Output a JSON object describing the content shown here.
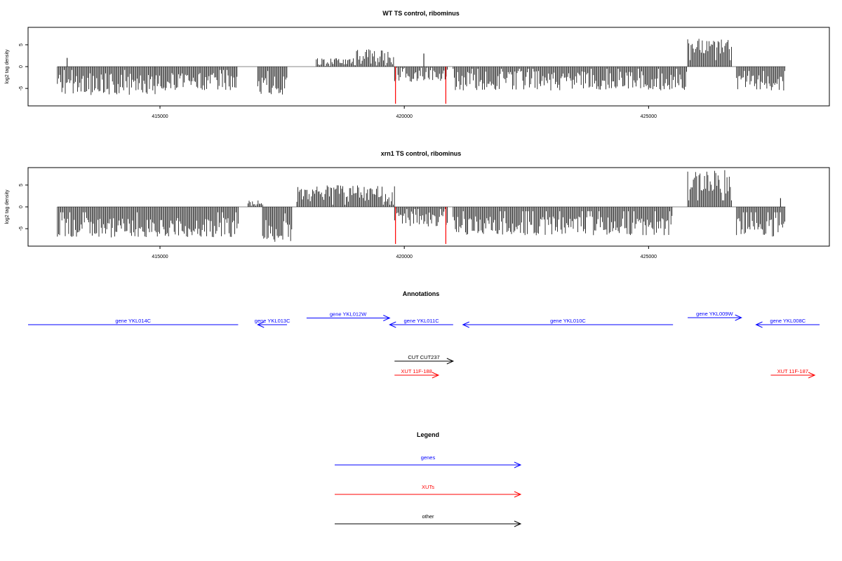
{
  "colors": {
    "signal": "#000000",
    "highlight": "#ff0000",
    "genes": "#0000ff",
    "xuts": "#ff0000",
    "other": "#000000",
    "baseline": "#888888"
  },
  "chart_data": [
    {
      "type": "bar",
      "title": "WT TS control, ribominus",
      "ylabel": "log2 tag density",
      "ylim": [
        -9,
        9
      ],
      "yticks": [
        -5,
        0,
        5
      ],
      "xlim": [
        412300,
        428700
      ],
      "xticks": [
        415000,
        420000,
        425000
      ],
      "grid": false,
      "segments": [
        {
          "start": 412900,
          "end": 414900,
          "sign": -1,
          "low": 1.5,
          "high": 6.5
        },
        {
          "start": 414900,
          "end": 416600,
          "sign": -1,
          "low": 1.5,
          "high": 5.5
        },
        {
          "start": 417000,
          "end": 417600,
          "sign": -1,
          "low": 2,
          "high": 6.5
        },
        {
          "start": 418200,
          "end": 419000,
          "sign": 1,
          "low": 0.3,
          "high": 2
        },
        {
          "start": 419000,
          "end": 419800,
          "sign": 1,
          "low": 0.5,
          "high": 4
        },
        {
          "start": 419800,
          "end": 420900,
          "sign": -1,
          "low": 0.5,
          "high": 3.5
        },
        {
          "start": 421000,
          "end": 425800,
          "sign": -1,
          "low": 1,
          "high": 5.5
        },
        {
          "start": 425800,
          "end": 426700,
          "sign": 1,
          "low": 3,
          "high": 6.5
        },
        {
          "start": 426800,
          "end": 427800,
          "sign": -1,
          "low": 2,
          "high": 5.5
        }
      ],
      "spikes": [
        {
          "x": 413100,
          "y": 2
        },
        {
          "x": 420400,
          "y": 3
        }
      ],
      "highlights": [
        {
          "x": 419820,
          "y": -8.5
        },
        {
          "x": 420850,
          "y": -8.5
        }
      ]
    },
    {
      "type": "bar",
      "title": "xrn1 TS control, ribominus",
      "ylabel": "log2 tag density",
      "ylim": [
        -9,
        9
      ],
      "yticks": [
        -5,
        0,
        5
      ],
      "xlim": [
        412300,
        428700
      ],
      "xticks": [
        415000,
        420000,
        425000
      ],
      "grid": false,
      "segments": [
        {
          "start": 412900,
          "end": 416600,
          "sign": -1,
          "low": 2.5,
          "high": 7
        },
        {
          "start": 416800,
          "end": 417100,
          "sign": 1,
          "low": 0.5,
          "high": 1.5
        },
        {
          "start": 417100,
          "end": 417700,
          "sign": -1,
          "low": 3,
          "high": 8
        },
        {
          "start": 417800,
          "end": 419800,
          "sign": 1,
          "low": 1,
          "high": 5
        },
        {
          "start": 419800,
          "end": 420900,
          "sign": -1,
          "low": 1,
          "high": 4.5
        },
        {
          "start": 421000,
          "end": 425500,
          "sign": -1,
          "low": 2,
          "high": 6.5
        },
        {
          "start": 425800,
          "end": 426700,
          "sign": 1,
          "low": 3,
          "high": 8.5
        },
        {
          "start": 426800,
          "end": 427800,
          "sign": -1,
          "low": 2.5,
          "high": 7
        }
      ],
      "spikes": [
        {
          "x": 427700,
          "y": 2
        }
      ],
      "highlights": [
        {
          "x": 419820,
          "y": -8.5
        },
        {
          "x": 420850,
          "y": -8.5
        }
      ]
    }
  ],
  "annotations": {
    "title": "Annotations",
    "items": [
      {
        "label": "gene YKL014C",
        "start": 412300,
        "end": 416600,
        "strand": "-",
        "row": 2,
        "kind": "genes",
        "arrow": false
      },
      {
        "label": "gene YKL013C",
        "start": 417000,
        "end": 417600,
        "strand": "-",
        "row": 2,
        "kind": "genes",
        "arrow": true
      },
      {
        "label": "gene YKL012W",
        "start": 418000,
        "end": 419700,
        "strand": "+",
        "row": 1,
        "kind": "genes",
        "arrow": true
      },
      {
        "label": "gene YKL011C",
        "start": 419700,
        "end": 421000,
        "strand": "-",
        "row": 2,
        "kind": "genes",
        "arrow": true
      },
      {
        "label": "gene YKL010C",
        "start": 421200,
        "end": 425500,
        "strand": "-",
        "row": 2,
        "kind": "genes",
        "arrow": true
      },
      {
        "label": "gene YKL009W",
        "start": 425800,
        "end": 426900,
        "strand": "+",
        "row": 0,
        "kind": "genes",
        "arrow": true
      },
      {
        "label": "gene YKL008C",
        "start": 427200,
        "end": 428500,
        "strand": "-",
        "row": 2,
        "kind": "genes",
        "arrow": true
      },
      {
        "label": "CUT CUT237",
        "start": 419800,
        "end": 421000,
        "strand": "+",
        "row": 3,
        "kind": "other",
        "arrow": true
      },
      {
        "label": "XUT 11F-188",
        "start": 419800,
        "end": 420700,
        "strand": "+",
        "row": 4,
        "kind": "xuts",
        "arrow": true
      },
      {
        "label": "XUT 11F-187",
        "start": 427500,
        "end": 428400,
        "strand": "+",
        "row": 4,
        "kind": "xuts",
        "arrow": true
      }
    ]
  },
  "legend": {
    "title": "Legend",
    "items": [
      {
        "label": "genes",
        "kind": "genes"
      },
      {
        "label": "XUTs",
        "kind": "xuts"
      },
      {
        "label": "other",
        "kind": "other"
      }
    ]
  }
}
